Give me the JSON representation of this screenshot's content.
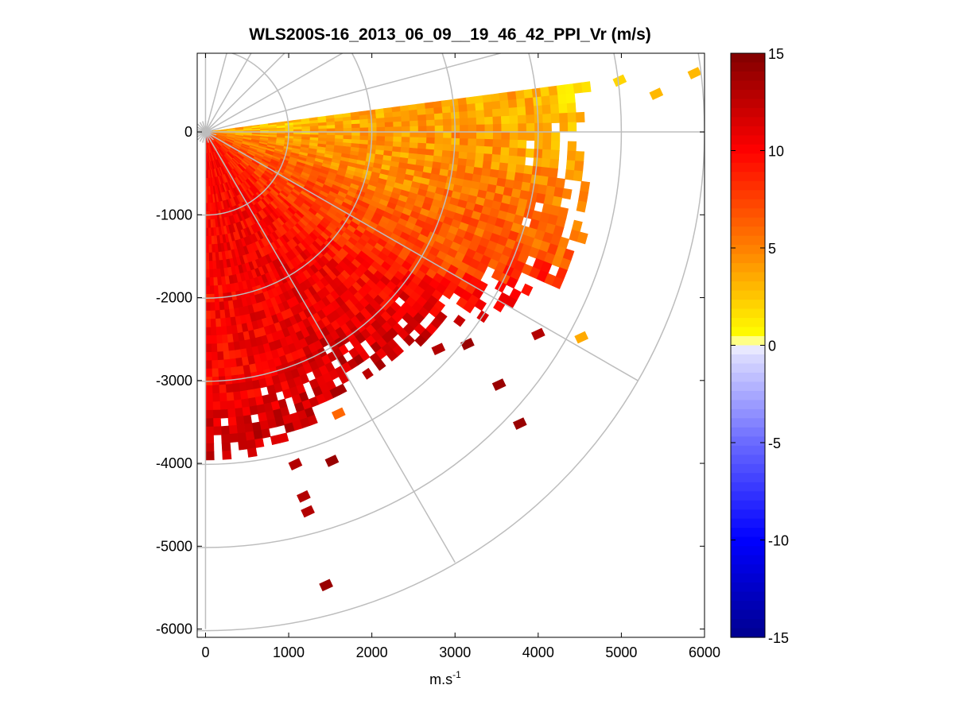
{
  "chart_data": {
    "type": "heatmap",
    "subtype": "polar-ppi-scan",
    "title": "WLS200S-16_2013_06_09__19_46_42_PPI_Vr (m/s)",
    "xlabel": "m.s",
    "xlabel_superscript": "-1",
    "ylabel": "",
    "xlim": [
      -100,
      6000
    ],
    "ylim": [
      -6100,
      950
    ],
    "x_ticks": [
      0,
      1000,
      2000,
      3000,
      4000,
      5000,
      6000
    ],
    "y_ticks": [
      0,
      -1000,
      -2000,
      -3000,
      -4000,
      -5000,
      -6000
    ],
    "grid": true,
    "polar_grid": {
      "range_rings_m": [
        1000,
        2000,
        3000,
        4000,
        5000,
        6000
      ],
      "bearing_spokes_deg_ccw_from_east": [
        0,
        -30,
        -60,
        -90,
        15,
        30,
        45,
        60,
        75,
        90
      ]
    },
    "scan": {
      "range_m": [
        60,
        4700
      ],
      "bearing_deg_ccw_from_east": [
        -89,
        7.5
      ],
      "range_gate_m": 100,
      "beam_step_deg": 1.5
    },
    "velocity_field_samples": [
      {
        "azimuth_deg": 6,
        "range_m": 1000,
        "vr": 2.5
      },
      {
        "azimuth_deg": 6,
        "range_m": 3500,
        "vr": 3.5
      },
      {
        "azimuth_deg": 6,
        "range_m": 4400,
        "vr": 2.0
      },
      {
        "azimuth_deg": -10,
        "range_m": 2000,
        "vr": 4.0
      },
      {
        "azimuth_deg": -20,
        "range_m": 3500,
        "vr": 6.5
      },
      {
        "azimuth_deg": -30,
        "range_m": 1500,
        "vr": 7.0
      },
      {
        "azimuth_deg": -40,
        "range_m": 3000,
        "vr": 10.0
      },
      {
        "azimuth_deg": -50,
        "range_m": 2500,
        "vr": 10.5
      },
      {
        "azimuth_deg": -60,
        "range_m": 2500,
        "vr": 11.0
      },
      {
        "azimuth_deg": -75,
        "range_m": 2000,
        "vr": 10.5
      },
      {
        "azimuth_deg": -85,
        "range_m": 3500,
        "vr": 10.0
      }
    ],
    "scatter_cells": [
      {
        "x": 1450,
        "y": -5470,
        "vr": 14
      },
      {
        "x": 1230,
        "y": -4580,
        "vr": 13
      },
      {
        "x": 1180,
        "y": -4400,
        "vr": 13
      },
      {
        "x": 1080,
        "y": -4010,
        "vr": 13
      },
      {
        "x": 1520,
        "y": -3970,
        "vr": 14
      },
      {
        "x": 1600,
        "y": -3400,
        "vr": 6
      },
      {
        "x": 3780,
        "y": -3520,
        "vr": 14
      },
      {
        "x": 3530,
        "y": -3050,
        "vr": 14
      },
      {
        "x": 4520,
        "y": -2480,
        "vr": 3.5
      },
      {
        "x": 4000,
        "y": -2440,
        "vr": 13
      },
      {
        "x": 3150,
        "y": -2560,
        "vr": 14
      },
      {
        "x": 2800,
        "y": -2620,
        "vr": 13
      },
      {
        "x": 5420,
        "y": 460,
        "vr": 3
      },
      {
        "x": 4980,
        "y": 620,
        "vr": 2
      },
      {
        "x": 5880,
        "y": 710,
        "vr": 3
      }
    ],
    "colorbar": {
      "label_ticks": [
        "15",
        "10",
        "5",
        "0",
        "-5",
        "-10",
        "-15"
      ],
      "tick_values": [
        15,
        10,
        5,
        0,
        -5,
        -10,
        -15
      ],
      "range": [
        -15,
        15
      ],
      "colors_low_to_high": [
        "#00008f",
        "#0000ff",
        "#6a6aff",
        "#ffffff",
        "#ffff00",
        "#ff8000",
        "#ff0000",
        "#800000"
      ]
    }
  }
}
